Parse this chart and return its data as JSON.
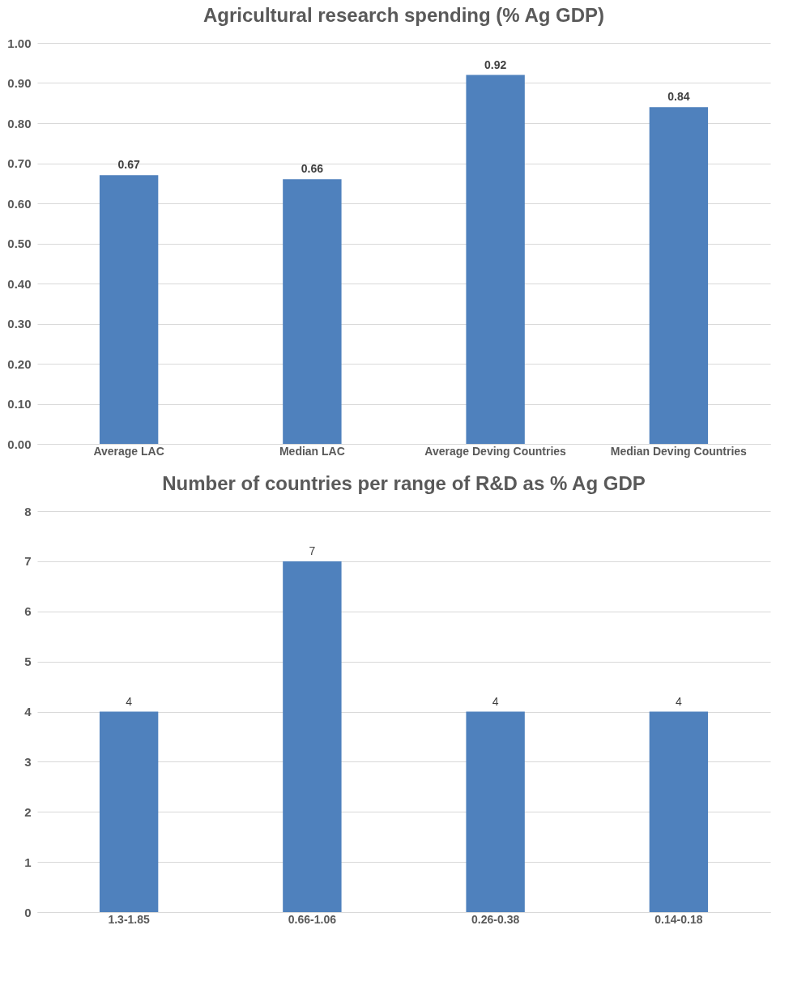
{
  "chart_data": [
    {
      "type": "bar",
      "title": "Agricultural research spending (% Ag GDP)",
      "categories": [
        "Average LAC",
        "Median LAC",
        "Average Deving Countries",
        "Median Deving Countries"
      ],
      "values": [
        0.67,
        0.66,
        0.92,
        0.84
      ],
      "color": "#4f81bd",
      "ylim": [
        0,
        1
      ],
      "yticks": [
        {
          "value": 0,
          "label": "0.00"
        },
        {
          "value": 0.1,
          "label": "0.10"
        },
        {
          "value": 0.2,
          "label": "0.20"
        },
        {
          "value": 0.3,
          "label": "0.30"
        },
        {
          "value": 0.4,
          "label": "0.40"
        },
        {
          "value": 0.5,
          "label": "0.50"
        },
        {
          "value": 0.6,
          "label": "0.60"
        },
        {
          "value": 0.7,
          "label": "0.70"
        },
        {
          "value": 0.8,
          "label": "0.80"
        },
        {
          "value": 0.9,
          "label": "0.90"
        },
        {
          "value": 1,
          "label": "1.00"
        }
      ],
      "grid": "y",
      "data_labels": true
    },
    {
      "type": "bar",
      "title": "Number of countries per range of R&D as % Ag GDP",
      "categories": [
        "1.3-1.85",
        "0.66-1.06",
        "0.26-0.38",
        "0.14-0.18"
      ],
      "values": [
        4,
        7,
        4,
        4
      ],
      "color": "#4f81bd",
      "ylim": [
        0,
        8
      ],
      "yticks": [
        0,
        1,
        2,
        3,
        4,
        5,
        6,
        7,
        8
      ],
      "grid": "y",
      "data_labels": true
    }
  ]
}
